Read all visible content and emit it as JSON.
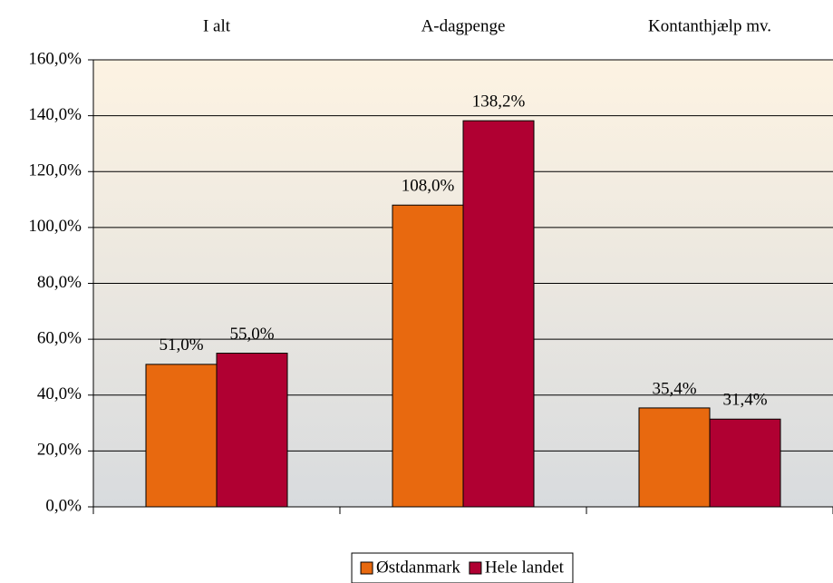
{
  "chart_data": {
    "type": "bar",
    "categories": [
      "I alt",
      "A-dagpenge",
      "Kontanthjælp mv."
    ],
    "series": [
      {
        "name": "Østdanmark",
        "color": "#E8690F",
        "values": [
          51.0,
          108.0,
          35.4
        ],
        "value_labels": [
          "51,0%",
          "108,0%",
          "35,4%"
        ]
      },
      {
        "name": "Hele landet",
        "color": "#B00032",
        "values": [
          55.0,
          138.2,
          31.4
        ],
        "value_labels": [
          "55,0%",
          "138,2%",
          "31,4%"
        ]
      }
    ],
    "ylim": [
      0,
      160
    ],
    "yticks": [
      {
        "value": 0,
        "label": "0,0%"
      },
      {
        "value": 20,
        "label": "20,0%"
      },
      {
        "value": 40,
        "label": "40,0%"
      },
      {
        "value": 60,
        "label": "60,0%"
      },
      {
        "value": 80,
        "label": "80,0%"
      },
      {
        "value": 100,
        "label": "100,0%"
      },
      {
        "value": 120,
        "label": "120,0%"
      },
      {
        "value": 140,
        "label": "140,0%"
      },
      {
        "value": 160,
        "label": "160,0%"
      }
    ],
    "grid": true,
    "legend": "bottom"
  }
}
